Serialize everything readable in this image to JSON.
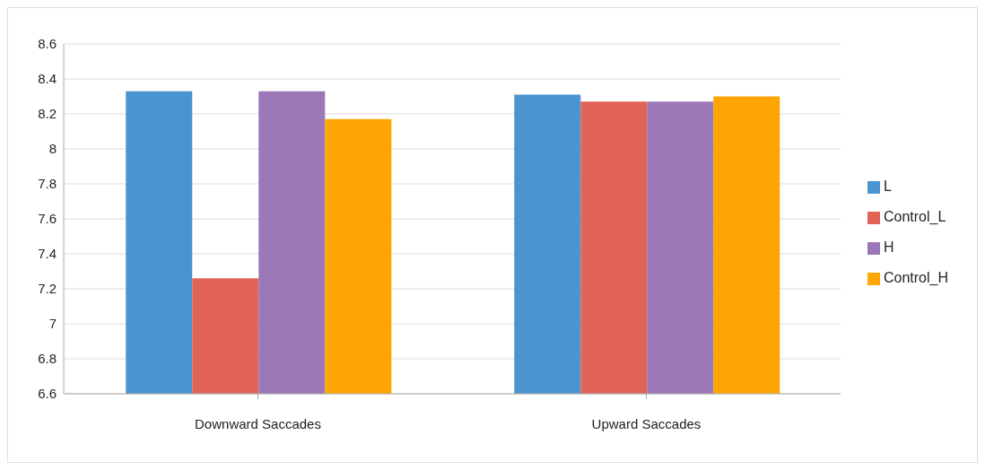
{
  "chart_data": {
    "type": "bar",
    "categories": [
      "Downward Saccades",
      "Upward Saccades"
    ],
    "series": [
      {
        "name": "L",
        "color": "#4a94d0",
        "values": [
          8.33,
          8.31
        ]
      },
      {
        "name": "Control_L",
        "color": "#e26357",
        "values": [
          7.26,
          8.27
        ]
      },
      {
        "name": "H",
        "color": "#9b77b8",
        "values": [
          8.33,
          8.27
        ]
      },
      {
        "name": "Control_H",
        "color": "#fda603",
        "values": [
          8.17,
          8.3
        ]
      }
    ],
    "ylim": [
      6.6,
      8.6
    ],
    "yticks": [
      6.6,
      6.8,
      7,
      7.2,
      7.4,
      7.6,
      7.8,
      8,
      8.2,
      8.4,
      8.6
    ],
    "grid": "y",
    "legend": "right"
  }
}
